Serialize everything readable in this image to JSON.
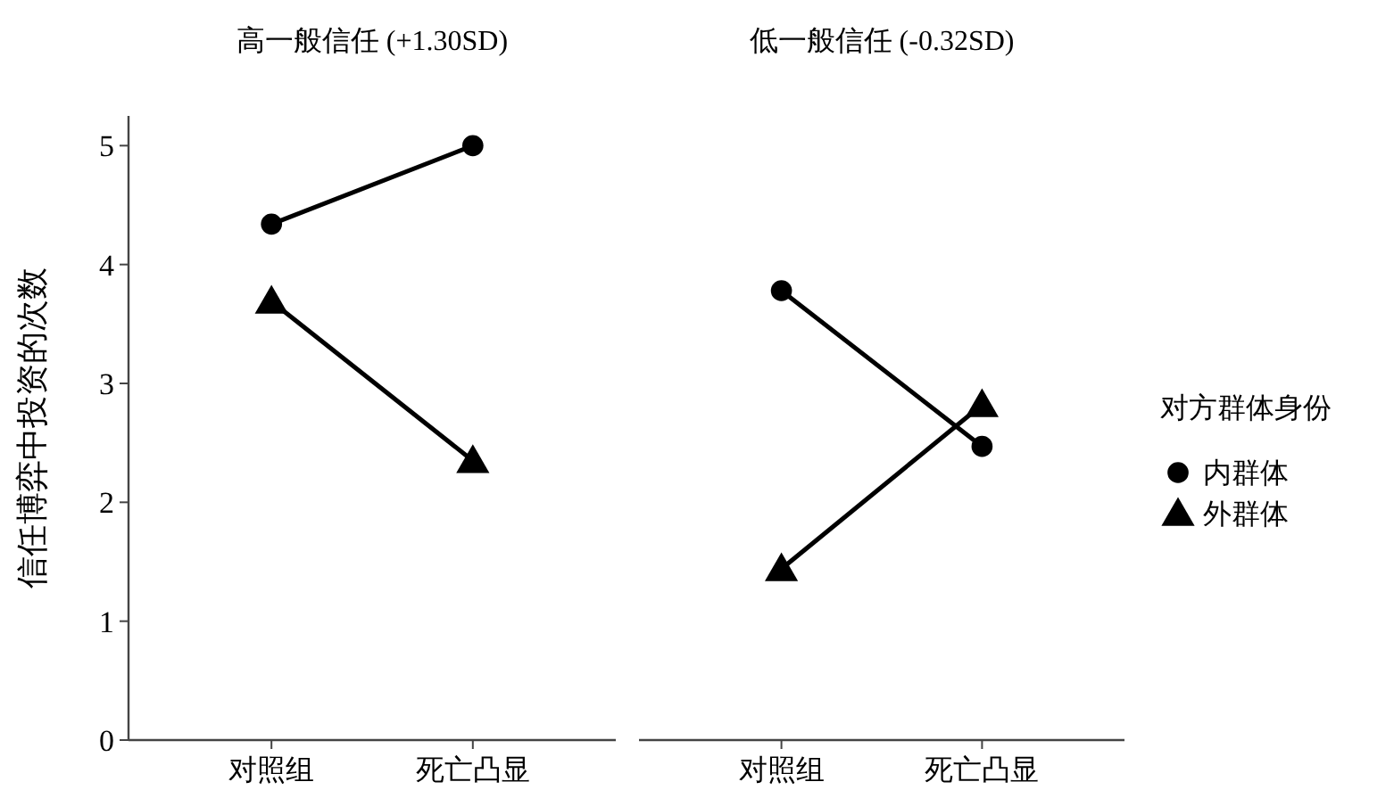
{
  "chart_data": [
    {
      "type": "line",
      "title": "高一般信任 (+1.30SD)",
      "ylabel": "信任博弈中投资的次数",
      "categories": [
        "对照组",
        "死亡凸显"
      ],
      "ylim": [
        0,
        5.25
      ],
      "yticks": [
        0,
        1,
        2,
        3,
        4,
        5
      ],
      "series": [
        {
          "color": "#000000",
          "marker": "circle",
          "values": [
            4.34,
            5.0
          ]
        },
        {
          "color": "#000000",
          "marker": "triangle",
          "values": [
            3.69,
            2.35
          ]
        }
      ]
    },
    {
      "type": "line",
      "title": "低一般信任 (-0.32SD)",
      "categories": [
        "对照组",
        "死亡凸显"
      ],
      "ylim": [
        0,
        5
      ],
      "yticks": [
        0,
        1,
        2,
        3,
        4,
        5
      ],
      "tick_labels": "x",
      "legend": "right",
      "legend_title": "对方群体身份",
      "series": [
        {
          "name": "内群体",
          "color": "#000000",
          "marker": "circle",
          "values": [
            3.78,
            2.47
          ]
        },
        {
          "name": "外群体",
          "color": "#000000",
          "marker": "triangle",
          "values": [
            1.44,
            2.82
          ]
        }
      ]
    }
  ]
}
